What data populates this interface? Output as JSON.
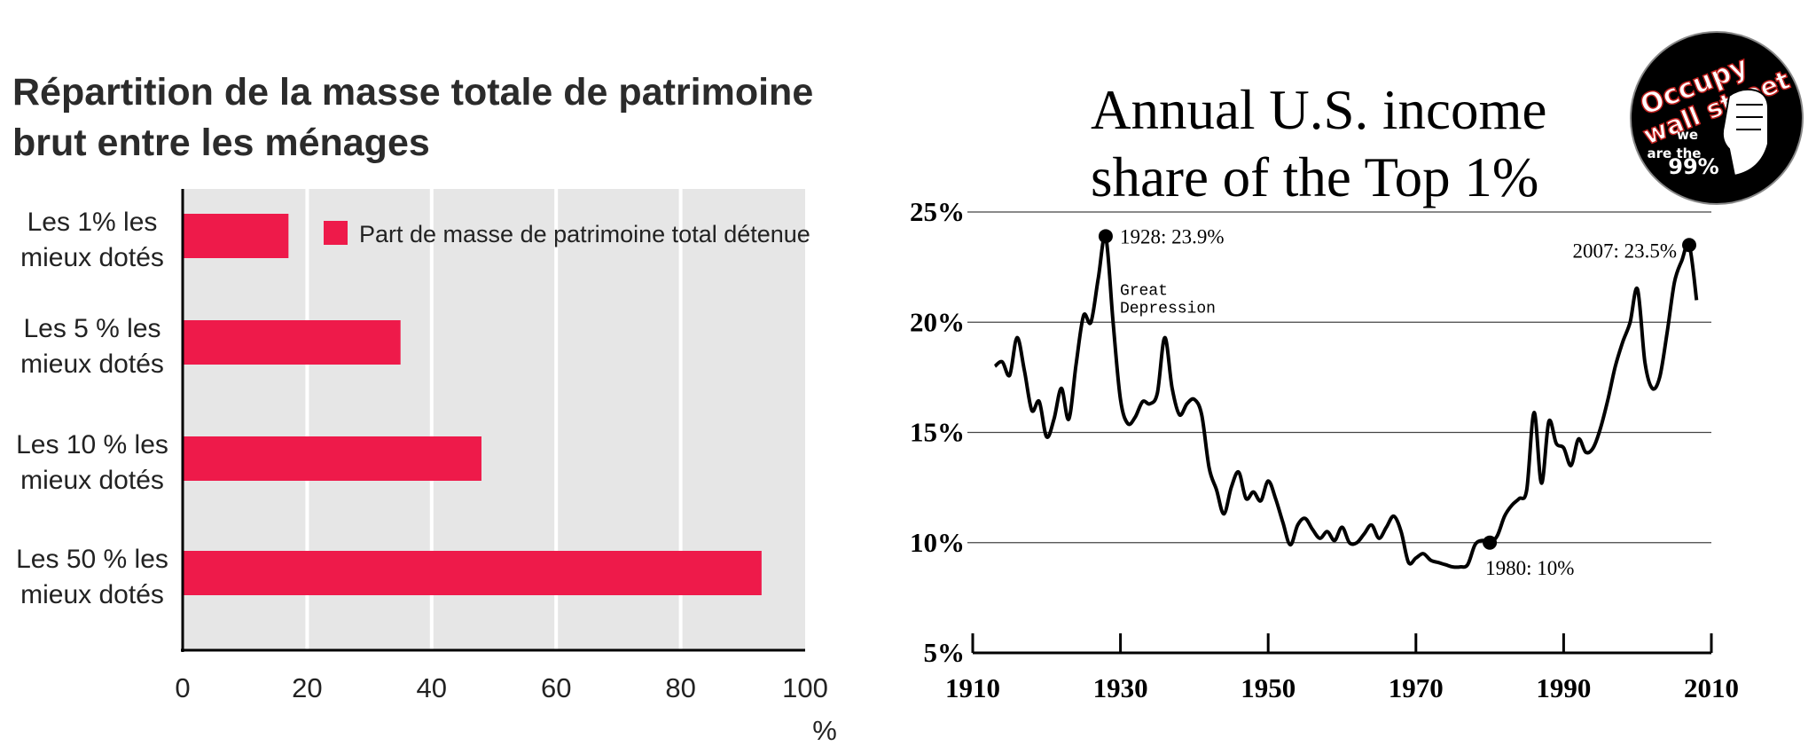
{
  "left_chart_title_line1": "Répartition de la masse totale de patrimoine",
  "left_chart_title_line2": "brut entre les ménages",
  "right_chart_title_line1": "Annual U.S. income",
  "right_chart_title_line2": "share of the Top 1%",
  "logo": {
    "text_line1": "Occupy",
    "text_line2": "wall street",
    "text_line3": "we",
    "text_line4": "are the",
    "text_line5": "99%"
  },
  "colors": {
    "bar": "#ee1a4a",
    "plot_bg": "#e6e6e6",
    "line": "#000000"
  },
  "chart_data": [
    {
      "type": "bar",
      "orientation": "horizontal",
      "categories": [
        [
          "Les 1% les",
          "mieux dotés"
        ],
        [
          "Les 5 % les",
          "mieux dotés"
        ],
        [
          "Les 10 % les",
          "mieux dotés"
        ],
        [
          "Les 50 % les",
          "mieux dotés"
        ]
      ],
      "values": [
        17,
        35,
        48,
        93
      ],
      "series_name": "Part de masse de patrimoine total détenue",
      "xlim": [
        0,
        100
      ],
      "xticks": [
        0,
        20,
        40,
        60,
        80,
        100
      ],
      "xlabel": "%",
      "grid": true
    },
    {
      "type": "line",
      "ylim": [
        5,
        25
      ],
      "yticks": [
        "5%",
        "10%",
        "15%",
        "20%",
        "25%"
      ],
      "ytick_values": [
        5,
        10,
        15,
        20,
        25
      ],
      "xlim": [
        1910,
        2010
      ],
      "xticks": [
        1910,
        1930,
        1950,
        1970,
        1990,
        2010
      ],
      "grid": true,
      "x": [
        1913,
        1914,
        1915,
        1916,
        1917,
        1918,
        1919,
        1920,
        1921,
        1922,
        1923,
        1924,
        1925,
        1926,
        1927,
        1928,
        1929,
        1930,
        1931,
        1932,
        1933,
        1934,
        1935,
        1936,
        1937,
        1938,
        1939,
        1940,
        1941,
        1942,
        1943,
        1944,
        1945,
        1946,
        1947,
        1948,
        1949,
        1950,
        1951,
        1952,
        1953,
        1954,
        1955,
        1956,
        1957,
        1958,
        1959,
        1960,
        1961,
        1962,
        1963,
        1964,
        1965,
        1966,
        1967,
        1968,
        1969,
        1970,
        1971,
        1972,
        1973,
        1974,
        1975,
        1976,
        1977,
        1978,
        1979,
        1980,
        1981,
        1982,
        1983,
        1984,
        1985,
        1986,
        1987,
        1988,
        1989,
        1990,
        1991,
        1992,
        1993,
        1994,
        1995,
        1996,
        1997,
        1998,
        1999,
        2000,
        2001,
        2002,
        2003,
        2004,
        2005,
        2006,
        2007,
        2008
      ],
      "y": [
        18.0,
        18.2,
        17.6,
        19.3,
        17.8,
        16.0,
        16.4,
        14.8,
        15.6,
        17.0,
        15.6,
        18.1,
        20.3,
        20.0,
        22.0,
        23.9,
        20.0,
        16.5,
        15.4,
        15.7,
        16.4,
        16.3,
        16.8,
        19.3,
        17.0,
        15.8,
        16.3,
        16.5,
        15.8,
        13.4,
        12.4,
        11.3,
        12.5,
        13.2,
        12.0,
        12.3,
        11.9,
        12.8,
        12.0,
        10.9,
        9.9,
        10.8,
        11.1,
        10.6,
        10.2,
        10.5,
        10.1,
        10.7,
        10.0,
        10.0,
        10.4,
        10.8,
        10.2,
        10.7,
        11.2,
        10.5,
        9.1,
        9.3,
        9.5,
        9.2,
        9.1,
        9.0,
        8.9,
        8.9,
        9.0,
        9.9,
        10.1,
        10.0,
        10.3,
        11.2,
        11.7,
        12.0,
        12.4,
        15.9,
        12.7,
        15.5,
        14.5,
        14.3,
        13.5,
        14.7,
        14.1,
        14.3,
        15.2,
        16.5,
        18.0,
        19.1,
        20.0,
        21.5,
        18.2,
        17.0,
        17.5,
        19.5,
        21.8,
        22.8,
        23.5,
        21.0
      ],
      "annotations": {
        "peak_1928": "1928: 23.9%",
        "great_depression_line1": "Great",
        "great_depression_line2": "Depression",
        "trough_1980": "1980: 10%",
        "peak_2007": "2007: 23.5%"
      }
    }
  ]
}
